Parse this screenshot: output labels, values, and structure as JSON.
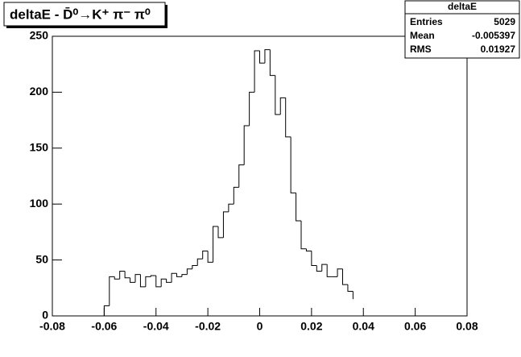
{
  "chart_data": {
    "type": "histogram",
    "title": "deltaE - D̄⁰→K⁺ π⁻ π⁰",
    "bins": [
      -0.06,
      -0.058,
      -0.056,
      -0.054,
      -0.052,
      -0.05,
      -0.048,
      -0.046,
      -0.044,
      -0.042,
      -0.04,
      -0.038,
      -0.036,
      -0.034,
      -0.032,
      -0.03,
      -0.028,
      -0.026,
      -0.024,
      -0.022,
      -0.02,
      -0.018,
      -0.016,
      -0.014,
      -0.012,
      -0.01,
      -0.008,
      -0.006,
      -0.004,
      -0.002,
      0.0,
      0.002,
      0.004,
      0.006,
      0.008,
      0.01,
      0.012,
      0.014,
      0.016,
      0.018,
      0.02,
      0.022,
      0.024,
      0.026,
      0.028,
      0.03,
      0.032,
      0.034,
      0.036
    ],
    "values": [
      9,
      35,
      33,
      40,
      34,
      30,
      37,
      26,
      35,
      36,
      26,
      33,
      30,
      38,
      35,
      37,
      42,
      45,
      51,
      58,
      48,
      80,
      70,
      93,
      100,
      115,
      135,
      170,
      200,
      237,
      226,
      238,
      215,
      180,
      195,
      160,
      110,
      85,
      60,
      58,
      45,
      40,
      46,
      35,
      35,
      42,
      28,
      22,
      15
    ],
    "color": "#000000",
    "xlim": [
      -0.08,
      0.08
    ],
    "xticks": [
      -0.08,
      -0.06,
      -0.04,
      -0.02,
      0,
      0.02,
      0.04,
      0.06,
      0.08
    ],
    "ylim": [
      0,
      250
    ],
    "yticks": [
      0,
      50,
      100,
      150,
      200,
      250
    ],
    "stats": {
      "title": "deltaE",
      "rows": [
        [
          "Entries",
          5029
        ],
        [
          "Mean",
          -0.005397
        ],
        [
          "RMS",
          0.01927
        ]
      ]
    }
  }
}
